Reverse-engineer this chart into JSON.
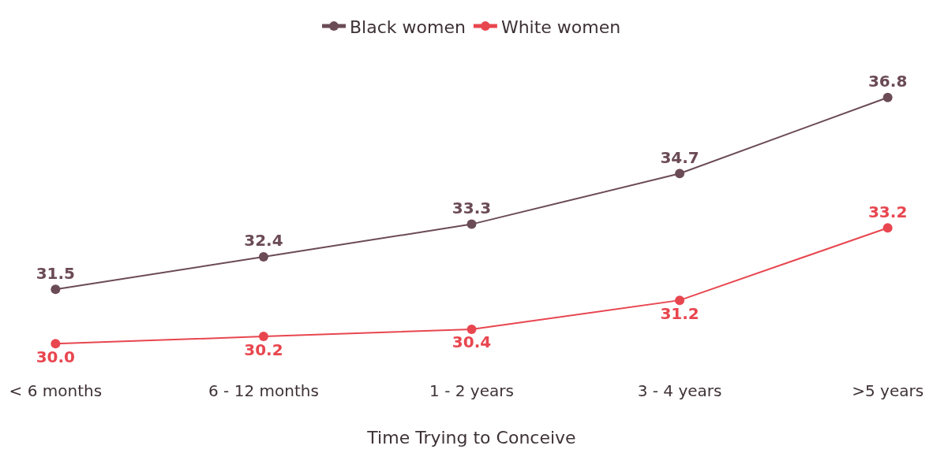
{
  "chart_data": {
    "type": "line",
    "xlabel": "Time Trying to Conceive",
    "categories": [
      "< 6 months",
      "6 - 12 months",
      "1 - 2 years",
      "3 - 4 years",
      ">5 years"
    ],
    "series": [
      {
        "name": "Black women",
        "color": "#6b4b55",
        "values": [
          31.5,
          32.4,
          33.3,
          34.7,
          36.8
        ],
        "value_labels": [
          "31.5",
          "32.4",
          "33.3",
          "34.7",
          "36.8"
        ]
      },
      {
        "name": "White women",
        "color": "#e8464f",
        "values": [
          30.0,
          30.2,
          30.4,
          31.2,
          33.2
        ],
        "value_labels": [
          "30.0",
          "30.2",
          "30.4",
          "31.2",
          "33.2"
        ]
      }
    ],
    "legend": "top",
    "marker": "circle",
    "line_style": "solid",
    "grid": false
  }
}
